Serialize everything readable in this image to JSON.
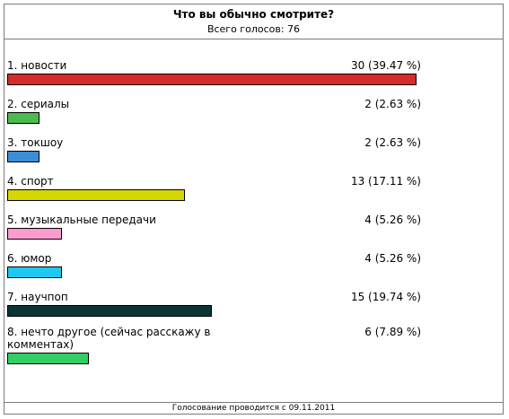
{
  "poll": {
    "title": "Что вы обычно смотрите?",
    "total_label": "Всего голосов: 76",
    "footer": "Голосование проводится с 09.11.2011",
    "options": [
      {
        "label": "1. новости",
        "count_text": "30 (39.47 %)",
        "percent": 39.47,
        "color": "#d62b2b"
      },
      {
        "label": "2. сериалы",
        "count_text": "2 (2.63 %)",
        "percent": 2.63,
        "color": "#4dba4d"
      },
      {
        "label": "3. токшоу",
        "count_text": "2 (2.63 %)",
        "percent": 2.63,
        "color": "#3c8fd6"
      },
      {
        "label": "4. спорт",
        "count_text": "13 (17.11 %)",
        "percent": 17.11,
        "color": "#d6d600"
      },
      {
        "label": "5. музыкальные передачи",
        "count_text": "4 (5.26 %)",
        "percent": 5.26,
        "color": "#ff9ccf"
      },
      {
        "label": "6. юмор",
        "count_text": "4 (5.26 %)",
        "percent": 5.26,
        "color": "#1ec8f0"
      },
      {
        "label": "7. научпоп",
        "count_text": "15 (19.74 %)",
        "percent": 19.74,
        "color": "#0a3535"
      },
      {
        "label": "8. нечто другое (сейчас расскажу в комментах)",
        "count_text": "6 (7.89 %)",
        "percent": 7.89,
        "color": "#33cc66"
      }
    ]
  }
}
